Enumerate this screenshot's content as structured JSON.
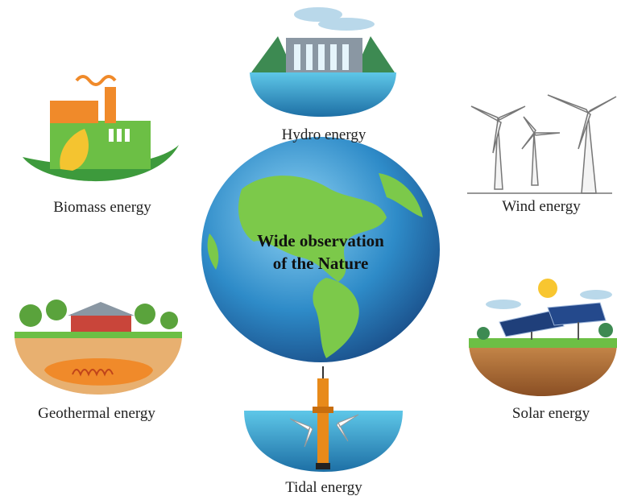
{
  "center": {
    "lines": [
      "Wide observation",
      "of the Nature"
    ]
  },
  "nodes": [
    {
      "label": "Hydro energy"
    },
    {
      "label": "Wind energy"
    },
    {
      "label": "Solar energy"
    },
    {
      "label": "Tidal energy"
    },
    {
      "label": "Geothermal energy"
    },
    {
      "label": "Biomass energy"
    }
  ]
}
